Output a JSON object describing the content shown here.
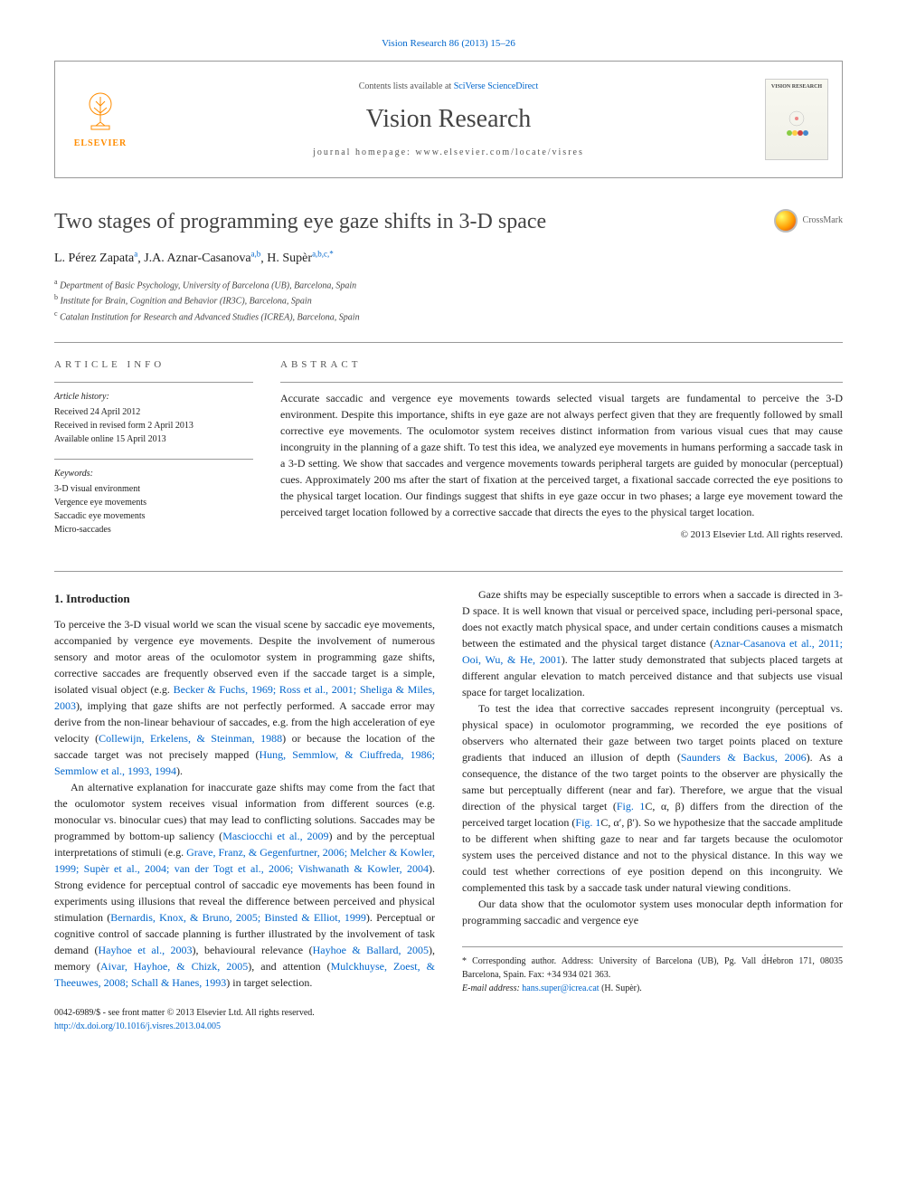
{
  "topLink": {
    "text": "Vision Research 86 (2013) 15–26",
    "href": "#"
  },
  "header": {
    "contentsPrefix": "Contents lists available at ",
    "contentsLink": "SciVerse ScienceDirect",
    "journalName": "Vision Research",
    "homepagePrefix": "journal homepage: ",
    "homepage": "www.elsevier.com/locate/visres",
    "publisher": "ELSEVIER",
    "coverTitle": "VISION RESEARCH"
  },
  "crossmark": "CrossMark",
  "title": "Two stages of programming eye gaze shifts in 3-D space",
  "authors": [
    {
      "name": "L. Pérez Zapata",
      "affil": "a"
    },
    {
      "name": "J.A. Aznar-Casanova",
      "affil": "a,b"
    },
    {
      "name": "H. Supèr",
      "affil": "a,b,c,*"
    }
  ],
  "affiliations": [
    {
      "sup": "a",
      "text": "Department of Basic Psychology, University of Barcelona (UB), Barcelona, Spain"
    },
    {
      "sup": "b",
      "text": "Institute for Brain, Cognition and Behavior (IR3C), Barcelona, Spain"
    },
    {
      "sup": "c",
      "text": "Catalan Institution for Research and Advanced Studies (ICREA), Barcelona, Spain"
    }
  ],
  "articleInfo": {
    "label": "ARTICLE INFO",
    "historyLabel": "Article history:",
    "history": [
      "Received 24 April 2012",
      "Received in revised form 2 April 2013",
      "Available online 15 April 2013"
    ],
    "keywordsLabel": "Keywords:",
    "keywords": [
      "3-D visual environment",
      "Vergence eye movements",
      "Saccadic eye movements",
      "Micro-saccades"
    ]
  },
  "abstract": {
    "label": "ABSTRACT",
    "text": "Accurate saccadic and vergence eye movements towards selected visual targets are fundamental to perceive the 3-D environment. Despite this importance, shifts in eye gaze are not always perfect given that they are frequently followed by small corrective eye movements. The oculomotor system receives distinct information from various visual cues that may cause incongruity in the planning of a gaze shift. To test this idea, we analyzed eye movements in humans performing a saccade task in a 3-D setting. We show that saccades and vergence movements towards peripheral targets are guided by monocular (perceptual) cues. Approximately 200 ms after the start of fixation at the perceived target, a fixational saccade corrected the eye positions to the physical target location. Our findings suggest that shifts in eye gaze occur in two phases; a large eye movement toward the perceived target location followed by a corrective saccade that directs the eyes to the physical target location.",
    "copyright": "© 2013 Elsevier Ltd. All rights reserved."
  },
  "body": {
    "heading": "1. Introduction",
    "paragraphs": [
      "To perceive the 3-D visual world we scan the visual scene by saccadic eye movements, accompanied by vergence eye movements. Despite the involvement of numerous sensory and motor areas of the oculomotor system in programming gaze shifts, corrective saccades are frequently observed even if the saccade target is a simple, isolated visual object (e.g. <a class='ref' href='#'>Becker & Fuchs, 1969; Ross et al., 2001; Sheliga & Miles, 2003</a>), implying that gaze shifts are not perfectly performed. A saccade error may derive from the non-linear behaviour of saccades, e.g. from the high acceleration of eye velocity (<a class='ref' href='#'>Collewijn, Erkelens, & Steinman, 1988</a>) or because the location of the saccade target was not precisely mapped (<a class='ref' href='#'>Hung, Semmlow, & Ciuffreda, 1986; Semmlow et al., 1993, 1994</a>).",
      "An alternative explanation for inaccurate gaze shifts may come from the fact that the oculomotor system receives visual information from different sources (e.g. monocular vs. binocular cues) that may lead to conflicting solutions. Saccades may be programmed by bottom-up saliency (<a class='ref' href='#'>Masciocchi et al., 2009</a>) and by the perceptual interpretations of stimuli (e.g. <a class='ref' href='#'>Grave, Franz, & Gegenfurtner, 2006; Melcher & Kowler, 1999; Supèr et al., 2004; van der Togt et al., 2006; Vishwanath & Kowler, 2004</a>). Strong evidence for perceptual control of saccadic eye movements has been found in experiments using illusions that reveal the difference between perceived and physical stimulation (<a class='ref' href='#'>Bernardis, Knox, & Bruno, 2005; Binsted & Elliot, 1999</a>). Perceptual or cognitive control of saccade planning is further illustrated by the involvement of task demand (<a class='ref' href='#'>Hayhoe et al., 2003</a>), behavioural relevance (<a class='ref' href='#'>Hayhoe & Ballard, 2005</a>), memory (<a class='ref' href='#'>Aivar, Hayhoe, & Chizk, 2005</a>), and attention (<a class='ref' href='#'>Mulckhuyse, Zoest, & Theeuwes, 2008; Schall & Hanes, 1993</a>) in target selection.",
      "Gaze shifts may be especially susceptible to errors when a saccade is directed in 3-D space. It is well known that visual or perceived space, including peri-personal space, does not exactly match physical space, and under certain conditions causes a mismatch between the estimated and the physical target distance (<a class='ref' href='#'>Aznar-Casanova et al., 2011; Ooi, Wu, & He, 2001</a>). The latter study demonstrated that subjects placed targets at different angular elevation to match perceived distance and that subjects use visual space for target localization.",
      "To test the idea that corrective saccades represent incongruity (perceptual vs. physical space) in oculomotor programming, we recorded the eye positions of observers who alternated their gaze between two target points placed on texture gradients that induced an illusion of depth (<a class='ref' href='#'>Saunders & Backus, 2006</a>). As a consequence, the distance of the two target points to the observer are physically the same but perceptually different (near and far). Therefore, we argue that the visual direction of the physical target (<a class='ref' href='#'>Fig. 1</a>C, α, β) differs from the direction of the perceived target location (<a class='ref' href='#'>Fig. 1</a>C, α′, β′). So we hypothesize that the saccade amplitude to be different when shifting gaze to near and far targets because the oculomotor system uses the perceived distance and not to the physical distance. In this way we could test whether corrections of eye position depend on this incongruity. We complemented this task by a saccade task under natural viewing conditions.",
      "Our data show that the oculomotor system uses monocular depth information for programming saccadic and vergence eye"
    ]
  },
  "footnote": {
    "corrLabel": "* Corresponding author. Address: University of Barcelona (UB), Pg. Vall d́Hebron 171, 08035 Barcelona, Spain. Fax: +34 934 021 363.",
    "emailLabel": "E-mail address: ",
    "email": "hans.super@icrea.cat",
    "emailSuffix": " (H. Supèr)."
  },
  "footerBottom": {
    "issn": "0042-6989/$ - see front matter © 2013 Elsevier Ltd. All rights reserved.",
    "doi": "http://dx.doi.org/10.1016/j.visres.2013.04.005"
  },
  "colors": {
    "link": "#0066cc",
    "elsevierOrange": "#ff8c00",
    "border": "#999999"
  }
}
